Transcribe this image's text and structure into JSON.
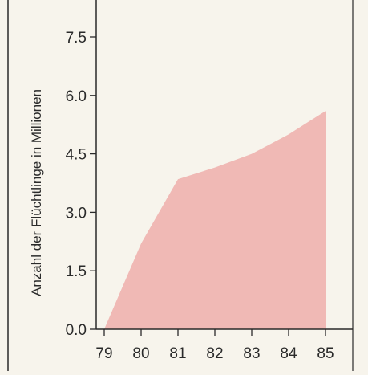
{
  "chart_data": {
    "type": "area",
    "title": "",
    "xlabel": "",
    "ylabel": "Anzahl der Flüchtlinge in Millionen",
    "x": [
      "79",
      "80",
      "81",
      "82",
      "83",
      "84",
      "85"
    ],
    "series": [
      {
        "values": [
          0.0,
          2.2,
          3.85,
          4.15,
          4.5,
          5.0,
          5.6
        ]
      }
    ],
    "ylim": [
      0,
      8.0
    ],
    "yticks": [
      "0.0",
      "1.5",
      "3.0",
      "4.5",
      "6.0",
      "7.5"
    ],
    "grid": false,
    "legend": "none",
    "colors": {
      "area_fill": "#f0b9b5",
      "axis": "#2a2a2a",
      "background": "#f7f4ec"
    }
  }
}
